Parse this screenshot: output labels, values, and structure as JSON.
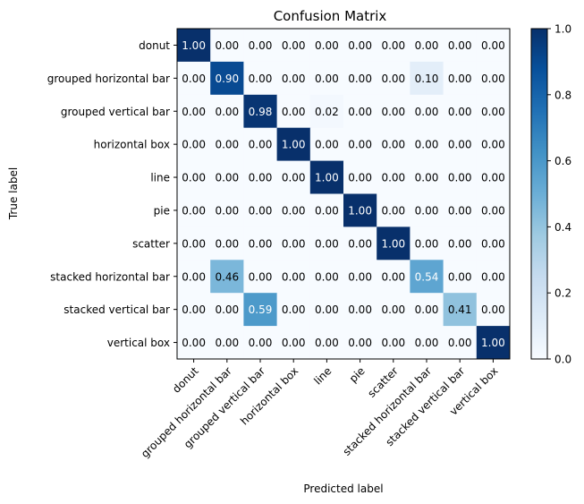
{
  "chart_data": {
    "type": "heatmap",
    "title": "Confusion Matrix",
    "xlabel": "Predicted label",
    "ylabel": "True label",
    "row_labels": [
      "donut",
      "grouped horizontal bar",
      "grouped vertical bar",
      "horizontal box",
      "line",
      "pie",
      "scatter",
      "stacked horizontal bar",
      "stacked vertical bar",
      "vertical box"
    ],
    "col_labels": [
      "donut",
      "grouped horizontal bar",
      "grouped vertical bar",
      "horizontal box",
      "line",
      "pie",
      "scatter",
      "stacked horizontal bar",
      "stacked vertical bar",
      "vertical box"
    ],
    "values": [
      [
        1.0,
        0.0,
        0.0,
        0.0,
        0.0,
        0.0,
        0.0,
        0.0,
        0.0,
        0.0
      ],
      [
        0.0,
        0.9,
        0.0,
        0.0,
        0.0,
        0.0,
        0.0,
        0.1,
        0.0,
        0.0
      ],
      [
        0.0,
        0.0,
        0.98,
        0.0,
        0.02,
        0.0,
        0.0,
        0.0,
        0.0,
        0.0
      ],
      [
        0.0,
        0.0,
        0.0,
        1.0,
        0.0,
        0.0,
        0.0,
        0.0,
        0.0,
        0.0
      ],
      [
        0.0,
        0.0,
        0.0,
        0.0,
        1.0,
        0.0,
        0.0,
        0.0,
        0.0,
        0.0
      ],
      [
        0.0,
        0.0,
        0.0,
        0.0,
        0.0,
        1.0,
        0.0,
        0.0,
        0.0,
        0.0
      ],
      [
        0.0,
        0.0,
        0.0,
        0.0,
        0.0,
        0.0,
        1.0,
        0.0,
        0.0,
        0.0
      ],
      [
        0.0,
        0.46,
        0.0,
        0.0,
        0.0,
        0.0,
        0.0,
        0.54,
        0.0,
        0.0
      ],
      [
        0.0,
        0.0,
        0.59,
        0.0,
        0.0,
        0.0,
        0.0,
        0.0,
        0.41,
        0.0
      ],
      [
        0.0,
        0.0,
        0.0,
        0.0,
        0.0,
        0.0,
        0.0,
        0.0,
        0.0,
        1.0
      ]
    ],
    "value_format": "0.00",
    "colormap": "Blues",
    "vmin": 0.0,
    "vmax": 1.0,
    "colorbar": {
      "ticks": [
        0.0,
        0.2,
        0.4,
        0.6,
        0.8,
        1.0
      ],
      "tick_labels": [
        "0.0",
        "0.2",
        "0.4",
        "0.6",
        "0.8",
        "1.0"
      ]
    },
    "x_tick_rotation_deg": 45,
    "grid": false,
    "colors": {
      "low": "#f7fbff",
      "high": "#08306b",
      "text_dark": "#000000",
      "text_light": "#ffffff"
    }
  }
}
